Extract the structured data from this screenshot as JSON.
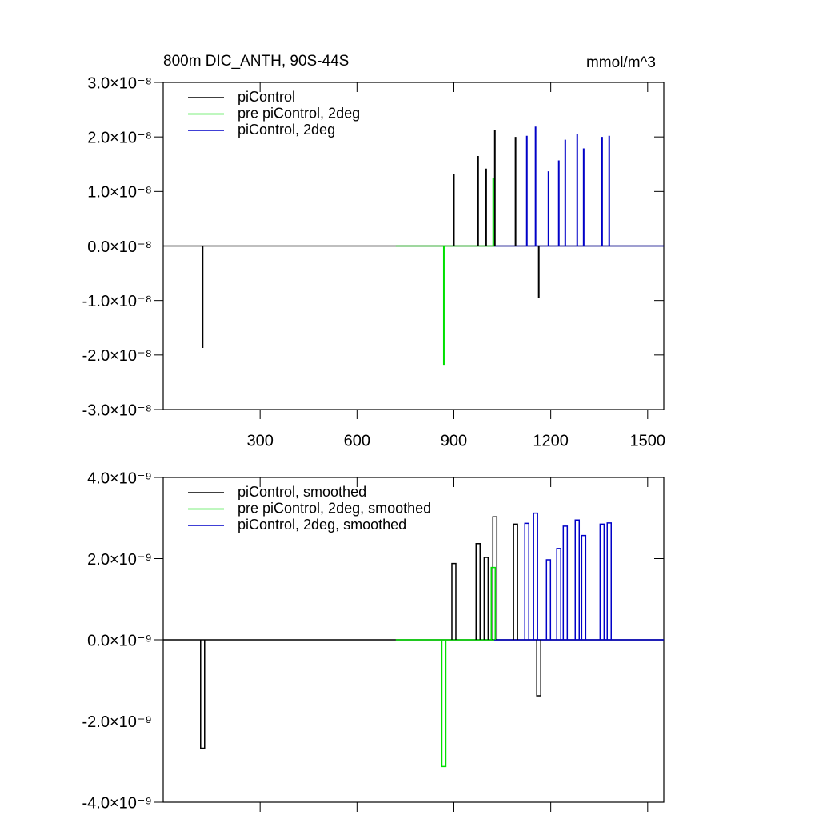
{
  "chart_data": [
    {
      "type": "spike",
      "title": "800m DIC_ANTH, 90S-44S",
      "units_label": "mmol/m^3",
      "xlim": [
        0,
        1550
      ],
      "xticks": [
        300,
        600,
        900,
        1200,
        1500
      ],
      "xtick_labels": true,
      "ylim": [
        -3e-08,
        3e-08
      ],
      "yticks": [
        {
          "value": -3e-08,
          "label": "-3.0×10⁻⁸"
        },
        {
          "value": -2e-08,
          "label": "-2.0×10⁻⁸"
        },
        {
          "value": -1e-08,
          "label": "-1.0×10⁻⁸"
        },
        {
          "value": 0,
          "label": "0.0×10⁻⁸"
        },
        {
          "value": 1e-08,
          "label": "1.0×10⁻⁸"
        },
        {
          "value": 2e-08,
          "label": "2.0×10⁻⁸"
        },
        {
          "value": 3e-08,
          "label": "3.0×10⁻⁸"
        }
      ],
      "series": [
        {
          "name": "piControl",
          "color": "#000000",
          "span": [
            1,
            1550
          ],
          "x": [
            122,
            900,
            975,
            1000,
            1027,
            1091,
            1163
          ],
          "values": [
            -1.87e-08,
            1.32e-08,
            1.65e-08,
            1.42e-08,
            2.13e-08,
            2e-08,
            -9.5e-09
          ]
        },
        {
          "name": "pre piControl, 2deg",
          "color": "#00e000",
          "span": [
            720,
            1025
          ],
          "x": [
            869,
            1022
          ],
          "values": [
            -2.18e-08,
            1.25e-08
          ]
        },
        {
          "name": "piControl, 2deg",
          "color": "#0000c8",
          "span": [
            1025,
            1550
          ],
          "x": [
            1126,
            1153,
            1193,
            1225,
            1245,
            1282,
            1302,
            1359,
            1381
          ],
          "values": [
            2.02e-08,
            2.19e-08,
            1.37e-08,
            1.57e-08,
            1.95e-08,
            2.06e-08,
            1.79e-08,
            2e-08,
            2.02e-08
          ]
        }
      ]
    },
    {
      "type": "boxcar",
      "xlim": [
        0,
        1550
      ],
      "xticks": [
        300,
        600,
        900,
        1200,
        1500
      ],
      "xtick_labels": false,
      "ylim": [
        -4e-09,
        4e-09
      ],
      "yticks": [
        {
          "value": -4e-09,
          "label": "-4.0×10⁻⁹"
        },
        {
          "value": -2e-09,
          "label": "-2.0×10⁻⁹"
        },
        {
          "value": 0,
          "label": "0.0×10⁻⁹"
        },
        {
          "value": 2e-09,
          "label": "2.0×10⁻⁹"
        },
        {
          "value": 4e-09,
          "label": "4.0×10⁻⁹"
        }
      ],
      "series": [
        {
          "name": "piControl, smoothed",
          "color": "#000000",
          "span": [
            1,
            1550
          ],
          "x": [
            122,
            900,
            975,
            1000,
            1027,
            1091,
            1163
          ],
          "values": [
            -2.67e-09,
            1.88e-09,
            2.37e-09,
            2.03e-09,
            3.03e-09,
            2.85e-09,
            -1.38e-09
          ]
        },
        {
          "name": "pre piControl, 2deg, smoothed",
          "color": "#00e000",
          "span": [
            720,
            1025
          ],
          "x": [
            869,
            1022
          ],
          "values": [
            -3.12e-09,
            1.78e-09
          ]
        },
        {
          "name": "piControl, 2deg, smoothed",
          "color": "#0000c8",
          "span": [
            1025,
            1550
          ],
          "x": [
            1126,
            1153,
            1193,
            1225,
            1245,
            1282,
            1302,
            1359,
            1381
          ],
          "values": [
            2.87e-09,
            3.12e-09,
            1.97e-09,
            2.25e-09,
            2.8e-09,
            2.95e-09,
            2.57e-09,
            2.85e-09,
            2.88e-09
          ]
        }
      ]
    }
  ]
}
